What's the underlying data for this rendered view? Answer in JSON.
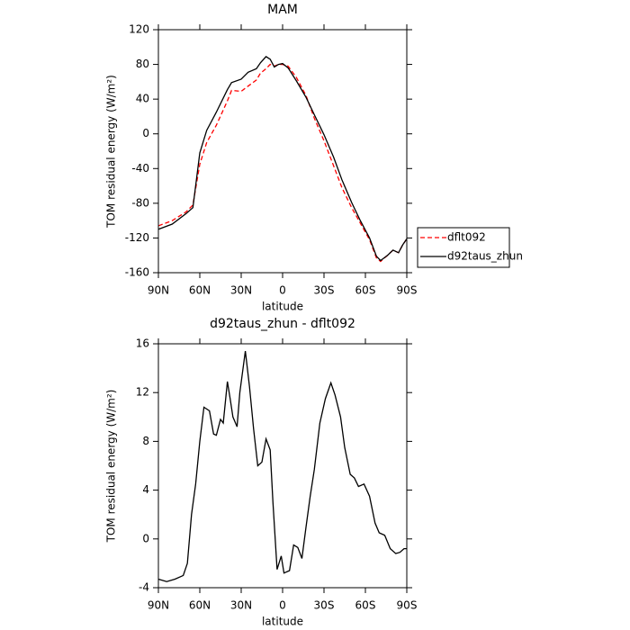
{
  "chart_data": [
    {
      "type": "line",
      "title": "MAM",
      "xlabel": "latitude",
      "ylabel": "TOM residual energy (W/m²)",
      "x": [
        90,
        80,
        70,
        65,
        60,
        55,
        48,
        40,
        37,
        30,
        25,
        19,
        16,
        12,
        9,
        6,
        3,
        0,
        -4,
        -10,
        -17,
        -23,
        -30,
        -37,
        -43,
        -50,
        -56,
        -63,
        -68,
        -71,
        -76,
        -80,
        -84,
        -87,
        -90
      ],
      "series": [
        {
          "name": "dflt092",
          "color": "#ff0000",
          "linestyle": "dashed",
          "values": [
            -106,
            -100,
            -90,
            -82,
            -35,
            -10,
            10,
            38,
            50,
            49,
            55,
            62,
            70,
            75,
            80,
            78,
            80,
            80,
            78,
            65,
            44,
            18,
            -8,
            -37,
            -62,
            -85,
            -102,
            -122,
            -143,
            -147,
            -140,
            -134,
            -137,
            -128,
            -121
          ]
        },
        {
          "name": "d92taus_zhun",
          "color": "#000000",
          "linestyle": "solid",
          "values": [
            -110,
            -104,
            -92,
            -85,
            -22,
            4,
            25,
            51,
            59,
            63,
            71,
            75,
            82,
            89,
            86,
            77,
            80,
            81,
            76,
            61,
            42,
            22,
            -1,
            -27,
            -53,
            -79,
            -99,
            -120,
            -141,
            -146,
            -140,
            -134,
            -137,
            -128,
            -121
          ]
        }
      ],
      "xlim": [
        90,
        -90
      ],
      "xticks": [
        {
          "value": 90,
          "label": "90N"
        },
        {
          "value": 60,
          "label": "60N"
        },
        {
          "value": 30,
          "label": "30N"
        },
        0,
        {
          "value": -30,
          "label": "30S"
        },
        {
          "value": -60,
          "label": "60S"
        },
        {
          "value": -90,
          "label": "90S"
        }
      ],
      "ylim": [
        -160,
        120
      ],
      "yticks": [
        -160,
        -120,
        -80,
        -40,
        0,
        40,
        80,
        120
      ],
      "legend": "right"
    },
    {
      "type": "line",
      "title": "d92taus_zhun - dflt092",
      "xlabel": "latitude",
      "ylabel": "TOM residual energy (W/m²)",
      "x": [
        90,
        84,
        78,
        72,
        69,
        66,
        63,
        60,
        57,
        53,
        50,
        48,
        45,
        43,
        40,
        38,
        36,
        33,
        31,
        27,
        24,
        21,
        18,
        15,
        12,
        9,
        7,
        4,
        1,
        -1,
        -5,
        -8,
        -11,
        -14,
        -17,
        -20,
        -23,
        -27,
        -31,
        -35,
        -38,
        -42,
        -45,
        -49,
        -52,
        -55,
        -59,
        -63,
        -67,
        -70,
        -74,
        -78,
        -82,
        -85,
        -88,
        -90
      ],
      "color": "#000000",
      "values": [
        -3.3,
        -3.5,
        -3.3,
        -3.0,
        -2.0,
        2,
        4.5,
        8,
        10.8,
        10.5,
        8.6,
        8.5,
        9.8,
        9.5,
        12.9,
        11.5,
        10.0,
        9.2,
        12,
        15.4,
        12.5,
        9,
        6,
        6.3,
        8.2,
        7.3,
        3,
        -2.5,
        -1.4,
        -2.8,
        -2.6,
        -0.5,
        -0.7,
        -1.6,
        1,
        3.5,
        5.7,
        9.5,
        11.5,
        12.8,
        11.8,
        10,
        7.5,
        5.3,
        5.0,
        4.3,
        4.5,
        3.5,
        1.3,
        0.5,
        0.3,
        -0.8,
        -1.2,
        -1.1,
        -0.8,
        -0.8
      ],
      "xlim": [
        90,
        -90
      ],
      "xticks": [
        {
          "value": 90,
          "label": "90N"
        },
        {
          "value": 60,
          "label": "60N"
        },
        {
          "value": 30,
          "label": "30N"
        },
        0,
        {
          "value": -30,
          "label": "30S"
        },
        {
          "value": -60,
          "label": "60S"
        },
        {
          "value": -90,
          "label": "90S"
        }
      ],
      "ylim": [
        -4,
        16
      ],
      "yticks": [
        -4,
        0,
        4,
        8,
        12,
        16
      ]
    }
  ]
}
